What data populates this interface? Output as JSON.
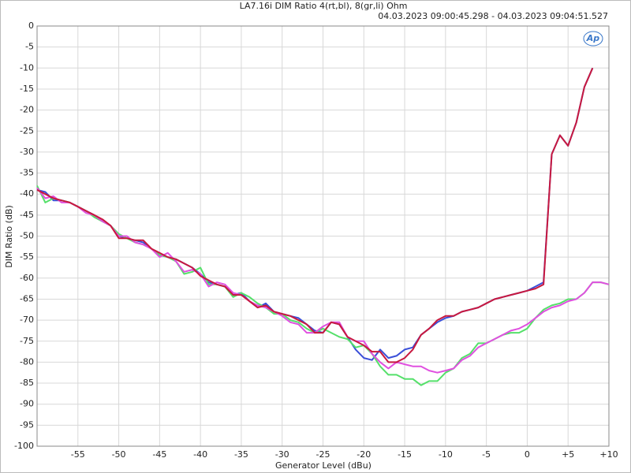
{
  "chart_data": {
    "type": "line",
    "title": "LA7.16i DIM Ratio 4(rt,bl), 8(gr,li) Ohm",
    "subtitle": "04.03.2023 09:00:45.298 - 04.03.2023 09:04:51.527",
    "logo": "Ap",
    "xlabel": "Generator Level (dBu)",
    "ylabel": "DIM Ratio (dB)",
    "xlim": [
      -60,
      10
    ],
    "ylim": [
      -100,
      0
    ],
    "xticks": [
      -55,
      -50,
      -45,
      -40,
      -35,
      -30,
      -25,
      -20,
      -15,
      -10,
      -5,
      0,
      {
        "value": 5,
        "label": "+5"
      },
      {
        "value": 10,
        "label": "+10"
      }
    ],
    "yticks": [
      0,
      -5,
      -10,
      -15,
      -20,
      -25,
      -30,
      -35,
      -40,
      -45,
      -50,
      -55,
      -60,
      -65,
      -70,
      -75,
      -80,
      -85,
      -90,
      -95,
      -100
    ],
    "grid": true,
    "x": [
      -60,
      -59,
      -58,
      -57,
      -56,
      -55,
      -54,
      -53,
      -52,
      -51,
      -50,
      -49,
      -48,
      -47,
      -46,
      -45,
      -44,
      -43,
      -42,
      -41,
      -40,
      -39,
      -38,
      -37,
      -36,
      -35,
      -34,
      -33,
      -32,
      -31,
      -30,
      -29,
      -28,
      -27,
      -26,
      -25,
      -24,
      -23,
      -22,
      -21,
      -20,
      -19,
      -18,
      -17,
      -16,
      -15,
      -14,
      -13,
      -12,
      -11,
      -10,
      -9,
      -8,
      -7,
      -6,
      -5,
      -4,
      -3,
      -2,
      -1,
      0,
      1,
      2,
      3,
      4,
      5,
      6,
      7,
      8,
      9,
      10
    ],
    "series": [
      {
        "color": "#3a4fd8",
        "values": [
          -39,
          -39.5,
          -41.5,
          -41.5,
          -42,
          -43,
          -44,
          -45,
          -46.5,
          -47.5,
          -50,
          -50.5,
          -51,
          -51.5,
          -53,
          -54.5,
          -55,
          -55.5,
          -56.5,
          -57.5,
          -59,
          -61,
          -61.5,
          -62,
          -64,
          -63.5,
          -65.5,
          -67,
          -66,
          -68,
          -68.5,
          -69,
          -69.5,
          -71,
          -72.5,
          -73,
          -70.5,
          -71,
          -74,
          -77,
          -79,
          -79.5,
          -77,
          -79,
          -78.5,
          -77,
          -76.5,
          -73.5,
          -72,
          -70.5,
          -69.5,
          -69,
          -68,
          -67.5,
          -67,
          -66,
          -65,
          -64.5,
          -64,
          -63.5,
          -63,
          -62,
          -61,
          -30.5,
          -26,
          -28.5,
          -23,
          -14.5,
          -10,
          null,
          null
        ]
      },
      {
        "color": "#55e06a",
        "values": [
          -38,
          -42,
          -41,
          -41.5,
          -42,
          -43,
          -44,
          -45.5,
          -46.5,
          -47.5,
          -49.5,
          -50.5,
          -51.5,
          -52,
          -53,
          -54.5,
          -55,
          -56,
          -59,
          -58.5,
          -57.5,
          -61.5,
          -61.5,
          -62,
          -64.5,
          -63.5,
          -64.5,
          -66,
          -67,
          -68.5,
          -68.5,
          -70,
          -70.5,
          -72,
          -73,
          -72,
          -73,
          -74,
          -74.5,
          -76.5,
          -76,
          -78,
          -81,
          -83,
          -83,
          -84,
          -84,
          -85.5,
          -84.5,
          -84.5,
          -82.5,
          -81.5,
          -79,
          -78,
          -75.5,
          -75.5,
          -74.5,
          -73.5,
          -73,
          -73,
          -72,
          -69.5,
          -67.5,
          -66.5,
          -66,
          -65,
          -65,
          -63.5,
          -61,
          -61,
          -61.5
        ]
      },
      {
        "color": "#e050e0",
        "values": [
          -38.5,
          -41,
          -40.5,
          -42,
          -42,
          -43,
          -44.5,
          -45,
          -46.5,
          -47.5,
          -50,
          -50,
          -51.5,
          -52,
          -53,
          -55,
          -54,
          -56,
          -58.5,
          -58,
          -59,
          -62,
          -61,
          -61.5,
          -63.5,
          -64,
          -65.5,
          -66.5,
          -67,
          -68,
          -69,
          -70.5,
          -71,
          -73,
          -73,
          -71.5,
          -70.5,
          -70.5,
          -74,
          -75,
          -75,
          -78,
          -80,
          -81.5,
          -80,
          -80.5,
          -81,
          -81,
          -82,
          -82.5,
          -82,
          -81.5,
          -79.5,
          -78.5,
          -76.5,
          -75.5,
          -74.5,
          -73.5,
          -72.5,
          -72,
          -71,
          -69.5,
          -68,
          -67,
          -66.5,
          -65.5,
          -65,
          -63.5,
          -61,
          -61,
          -61.5
        ]
      },
      {
        "color": "#c8193f",
        "values": [
          -39,
          -40,
          -41,
          -41.5,
          -42,
          -43,
          -44,
          -45,
          -46,
          -47.5,
          -50.5,
          -50.5,
          -51,
          -51,
          -53,
          -54,
          -55,
          -55.5,
          -56.5,
          -57.5,
          -59.5,
          -60.5,
          -61.5,
          -62,
          -64,
          -64,
          -65.5,
          -67,
          -66.5,
          -68,
          -68.5,
          -69,
          -70,
          -71,
          -73,
          -73,
          -70.5,
          -71,
          -74,
          -75,
          -76,
          -77.5,
          -77.5,
          -80,
          -80,
          -79,
          -77,
          -73.5,
          -72,
          -70,
          -69,
          -69,
          -68,
          -67.5,
          -67,
          -66,
          -65,
          -64.5,
          -64,
          -63.5,
          -63,
          -62.5,
          -61.5,
          -30.5,
          -26,
          -28.5,
          -23,
          -14.5,
          -10,
          null,
          null
        ]
      }
    ]
  }
}
